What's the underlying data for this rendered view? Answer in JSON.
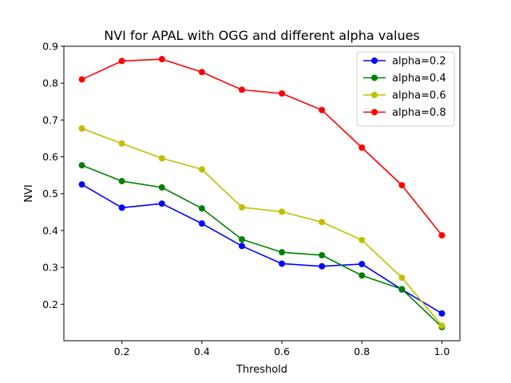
{
  "chart_data": {
    "type": "line",
    "title": "NVI for APAL with OGG and different alpha values",
    "xlabel": "Threshold",
    "ylabel": "NVI",
    "xlim": [
      0.055,
      1.045
    ],
    "ylim": [
      0.101,
      0.9
    ],
    "xticks": [
      0.2,
      0.4,
      0.6,
      0.8,
      1.0
    ],
    "xtick_labels": [
      "0.2",
      "0.4",
      "0.6",
      "0.8",
      "1.0"
    ],
    "yticks": [
      0.2,
      0.3,
      0.4,
      0.5,
      0.6,
      0.7,
      0.8,
      0.9
    ],
    "ytick_labels": [
      "0.2",
      "0.3",
      "0.4",
      "0.5",
      "0.6",
      "0.7",
      "0.8",
      "0.9"
    ],
    "grid": false,
    "legend_position": "top-right",
    "x": [
      0.1,
      0.2,
      0.3,
      0.4,
      0.5,
      0.6,
      0.7,
      0.8,
      0.9,
      1.0
    ],
    "series": [
      {
        "name": "alpha=0.2",
        "color": "#0000ff",
        "values": [
          0.525,
          0.462,
          0.473,
          0.419,
          0.358,
          0.31,
          0.303,
          0.309,
          0.24,
          0.175
        ]
      },
      {
        "name": "alpha=0.4",
        "color": "#008000",
        "values": [
          0.577,
          0.534,
          0.517,
          0.46,
          0.376,
          0.341,
          0.333,
          0.278,
          0.241,
          0.138
        ]
      },
      {
        "name": "alpha=0.6",
        "color": "#bfbf00",
        "values": [
          0.677,
          0.636,
          0.596,
          0.566,
          0.463,
          0.451,
          0.423,
          0.374,
          0.272,
          0.142
        ]
      },
      {
        "name": "alpha=0.8",
        "color": "#ff0000",
        "values": [
          0.81,
          0.86,
          0.865,
          0.83,
          0.782,
          0.772,
          0.727,
          0.625,
          0.523,
          0.387
        ]
      }
    ]
  }
}
